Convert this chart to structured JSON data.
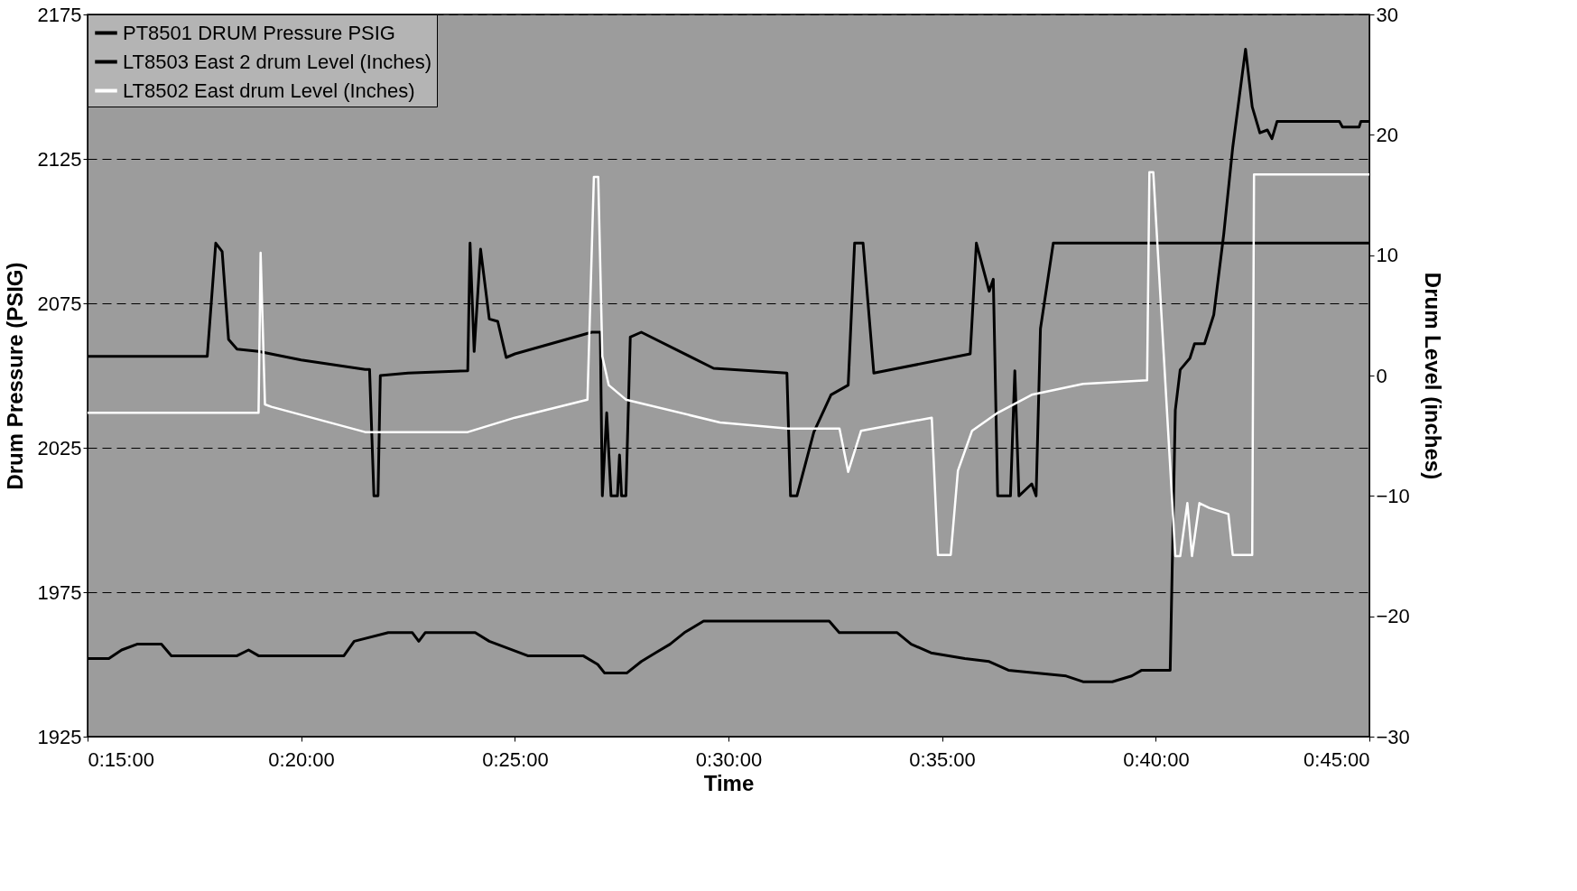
{
  "chart_data": {
    "type": "line",
    "xlabel": "Time",
    "ylabel": "Drum Pressure (PSIG)",
    "y2label": "Drum Level (inches)",
    "xlim": [
      0.25,
      0.75
    ],
    "xticks": [
      {
        "value": 0.25,
        "label": "0:15:00"
      },
      {
        "value": 0.3333,
        "label": "0:20:00"
      },
      {
        "value": 0.4167,
        "label": "0:25:00"
      },
      {
        "value": 0.5,
        "label": "0:30:00"
      },
      {
        "value": 0.5833,
        "label": "0:35:00"
      },
      {
        "value": 0.6667,
        "label": "0:40:00"
      },
      {
        "value": 0.75,
        "label": "0:45:00"
      }
    ],
    "ylim": [
      1925,
      2175
    ],
    "yticks": [
      1925,
      1975,
      2025,
      2075,
      2125,
      2175
    ],
    "y2lim": [
      -30,
      30
    ],
    "y2ticks": [
      -30,
      -20,
      -10,
      0,
      10,
      20,
      30
    ],
    "grid": "y",
    "legend": "top left",
    "line_style": "solid",
    "series": [
      {
        "name": "PT8501 DRUM Pressure PSIG",
        "color": "#000000",
        "x": [
          0.25,
          0.2583,
          0.2633,
          0.2693,
          0.2788,
          0.2827,
          0.3083,
          0.3128,
          0.3167,
          0.35,
          0.354,
          0.3673,
          0.3767,
          0.3792,
          0.3817,
          0.4012,
          0.4067,
          0.4217,
          0.4433,
          0.449,
          0.4517,
          0.4603,
          0.466,
          0.4715,
          0.4772,
          0.4828,
          0.4903,
          0.5393,
          0.5432,
          0.5658,
          0.5713,
          0.579,
          0.5922,
          0.6017,
          0.6092,
          0.6317,
          0.6383,
          0.6497,
          0.6573,
          0.6612,
          0.6723,
          0.6743,
          0.6762,
          0.68,
          0.6818,
          0.6857,
          0.6893,
          0.6932,
          0.6967,
          0.7017,
          0.7043,
          0.7073,
          0.7102,
          0.712,
          0.714,
          0.7177,
          0.7383,
          0.7395,
          0.746,
          0.7467,
          0.75
        ],
        "values": [
          1952,
          1952,
          1955,
          1957,
          1957,
          1953,
          1953,
          1955,
          1953,
          1953,
          1958,
          1961,
          1961,
          1958,
          1961,
          1961,
          1958,
          1953,
          1953,
          1950,
          1947,
          1947,
          1951,
          1954,
          1957,
          1961,
          1965,
          1965,
          1961,
          1961,
          1957,
          1954,
          1952,
          1951,
          1948,
          1946,
          1944,
          1944,
          1946,
          1948,
          1948,
          2038,
          2052,
          2056,
          2061,
          2061,
          2071,
          2099,
          2129,
          2163,
          2143,
          2134,
          2135,
          2132,
          2138,
          2138,
          2138,
          2136,
          2136,
          2138,
          2138
        ]
      },
      {
        "name": "LT8503 East 2 drum Level (Inches)",
        "color": "#000000",
        "axis": "y2",
        "x": [
          0.25,
          0.2967,
          0.3,
          0.3025,
          0.305,
          0.3083,
          0.3167,
          0.3333,
          0.3583,
          0.36,
          0.3617,
          0.3633,
          0.3642,
          0.375,
          0.3983,
          0.3992,
          0.4008,
          0.4033,
          0.4067,
          0.41,
          0.4133,
          0.4167,
          0.4467,
          0.45,
          0.4508,
          0.4525,
          0.4542,
          0.4567,
          0.4575,
          0.4583,
          0.46,
          0.4617,
          0.466,
          0.4942,
          0.5228,
          0.5242,
          0.5267,
          0.5333,
          0.54,
          0.5467,
          0.5492,
          0.5525,
          0.5567,
          0.5943,
          0.5967,
          0.6017,
          0.6033,
          0.605,
          0.61,
          0.6117,
          0.6133,
          0.6183,
          0.62,
          0.6217,
          0.6267,
          0.75
        ],
        "values": [
          1.6,
          1.6,
          11,
          10.3,
          3,
          2.2,
          2,
          1.3,
          0.5,
          0.5,
          -10,
          -10,
          0,
          0.2,
          0.4,
          11,
          2,
          10.5,
          4.7,
          4.5,
          1.5,
          1.8,
          3.6,
          3.6,
          -10,
          -3.1,
          -10,
          -10,
          -6.6,
          -10,
          -10,
          3.2,
          3.6,
          0.6,
          0.2,
          -10,
          -10,
          -4.7,
          -1.6,
          -0.8,
          11,
          11,
          0.2,
          1.8,
          11,
          7,
          8,
          -10,
          -10,
          0.4,
          -10,
          -9,
          -10,
          3.9,
          11,
          11
        ]
      },
      {
        "name": "LT8502 East drum Level (Inches)",
        "color": "#ffffff",
        "axis": "y2",
        "x": [
          0.25,
          0.3167,
          0.3175,
          0.3192,
          0.3217,
          0.3583,
          0.3983,
          0.4167,
          0.445,
          0.4475,
          0.4492,
          0.4508,
          0.4533,
          0.46,
          0.4967,
          0.5233,
          0.5433,
          0.5467,
          0.5517,
          0.5793,
          0.5817,
          0.5867,
          0.5895,
          0.595,
          0.605,
          0.6183,
          0.6383,
          0.6633,
          0.6642,
          0.6657,
          0.6743,
          0.6762,
          0.679,
          0.6808,
          0.6837,
          0.6875,
          0.695,
          0.6967,
          0.7043,
          0.705,
          0.75
        ],
        "values": [
          -3.1,
          -3.1,
          10.2,
          -2.4,
          -2.6,
          -4.7,
          -4.7,
          -3.5,
          -2,
          16.5,
          16.5,
          1.6,
          -0.8,
          -2,
          -3.9,
          -4.4,
          -4.4,
          -8,
          -4.6,
          -3.5,
          -14.9,
          -14.9,
          -7.9,
          -4.6,
          -3.1,
          -1.6,
          -0.7,
          -0.4,
          16.9,
          16.9,
          -15,
          -15,
          -10.6,
          -15,
          -10.6,
          -11,
          -11.5,
          -14.9,
          -14.9,
          16.7,
          16.7
        ]
      }
    ]
  }
}
